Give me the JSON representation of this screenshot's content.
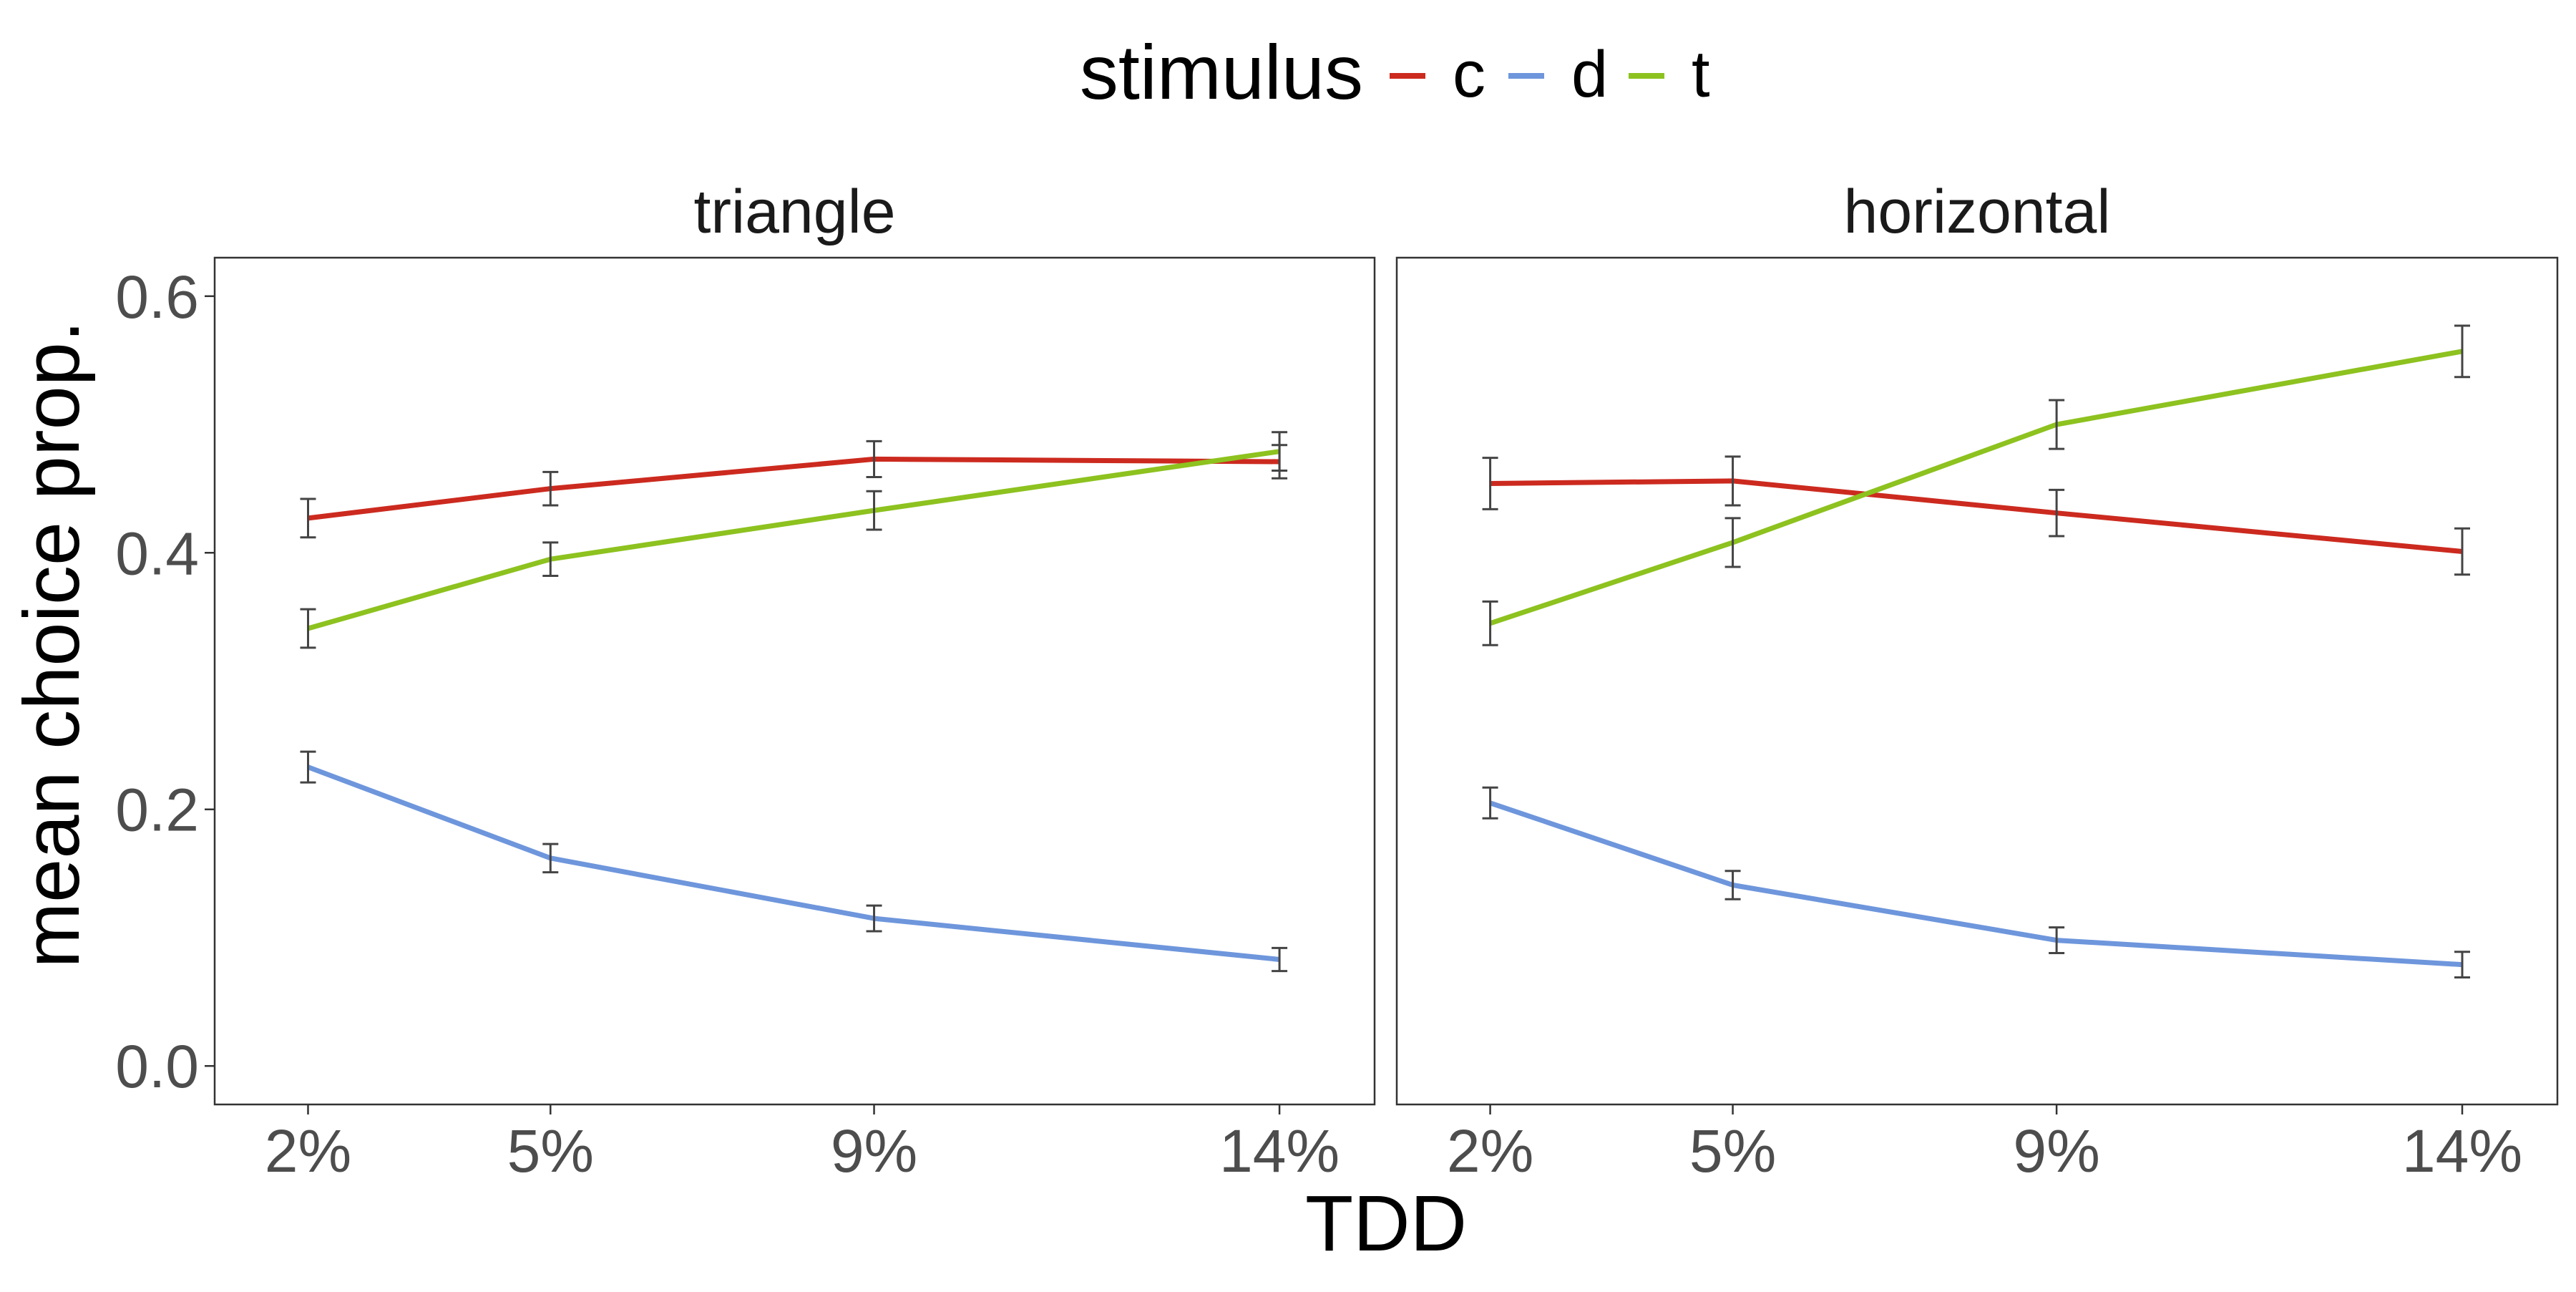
{
  "legend": {
    "title": "stimulus",
    "items": [
      {
        "key": "c",
        "label": "c",
        "color": "#CC2A1F"
      },
      {
        "key": "d",
        "label": "d",
        "color": "#6E96DC"
      },
      {
        "key": "t",
        "label": "t",
        "color": "#8DC21F"
      }
    ],
    "placement": "top"
  },
  "xlabel": "TDD",
  "ylabel": "mean choice prop.",
  "chart_data": [
    {
      "type": "line",
      "title": "triangle",
      "categories": [
        "2%",
        "5%",
        "9%",
        "14%"
      ],
      "x": [
        2,
        5,
        9,
        14
      ],
      "ylim": [
        -0.03,
        0.63
      ],
      "yticks": [
        0.0,
        0.2,
        0.4,
        0.6
      ],
      "ytick_labels": [
        "0.0",
        "0.2",
        "0.4",
        "0.6"
      ],
      "grid": false,
      "series": [
        {
          "name": "c",
          "color": "#CC2A1F",
          "values": [
            0.427,
            0.45,
            0.473,
            0.471
          ],
          "err": [
            0.015,
            0.013,
            0.014,
            0.013
          ]
        },
        {
          "name": "d",
          "color": "#6E96DC",
          "values": [
            0.233,
            0.162,
            0.115,
            0.083
          ],
          "err": [
            0.012,
            0.011,
            0.01,
            0.009
          ]
        },
        {
          "name": "t",
          "color": "#8DC21F",
          "values": [
            0.341,
            0.395,
            0.433,
            0.479
          ],
          "err": [
            0.015,
            0.013,
            0.015,
            0.015
          ]
        }
      ]
    },
    {
      "type": "line",
      "title": "horizontal",
      "categories": [
        "2%",
        "5%",
        "9%",
        "14%"
      ],
      "x": [
        2,
        5,
        9,
        14
      ],
      "ylim": [
        -0.03,
        0.63
      ],
      "yticks": [
        0.0,
        0.2,
        0.4,
        0.6
      ],
      "ytick_labels": [
        "0.0",
        "0.2",
        "0.4",
        "0.6"
      ],
      "grid": false,
      "series": [
        {
          "name": "c",
          "color": "#CC2A1F",
          "values": [
            0.454,
            0.456,
            0.431,
            0.401
          ],
          "err": [
            0.02,
            0.019,
            0.018,
            0.018
          ]
        },
        {
          "name": "d",
          "color": "#6E96DC",
          "values": [
            0.205,
            0.141,
            0.098,
            0.079
          ],
          "err": [
            0.012,
            0.011,
            0.01,
            0.01
          ]
        },
        {
          "name": "t",
          "color": "#8DC21F",
          "values": [
            0.345,
            0.408,
            0.5,
            0.557
          ],
          "err": [
            0.017,
            0.019,
            0.019,
            0.02
          ]
        }
      ]
    }
  ]
}
